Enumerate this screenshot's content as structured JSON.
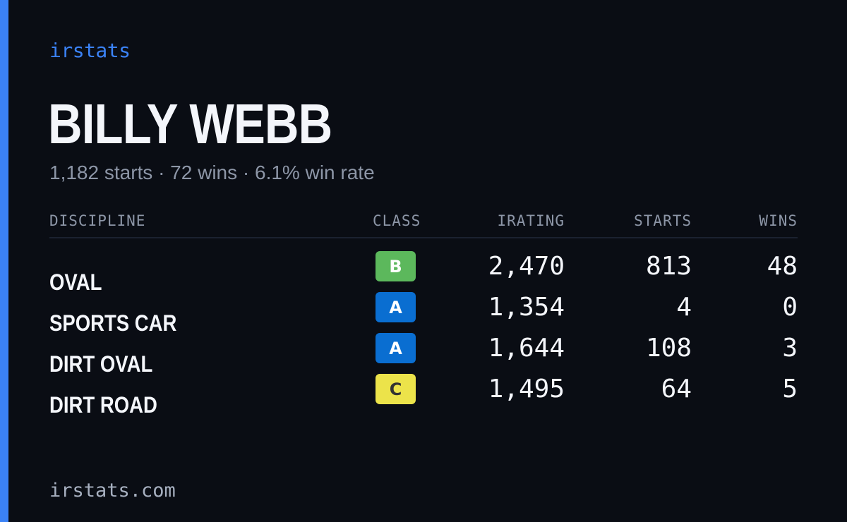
{
  "brand": {
    "name": "irstats",
    "accent_color": "#3b82f6"
  },
  "profile": {
    "name": "BILLY WEBB",
    "summary": "1,182 starts · 72 wins · 6.1% win rate"
  },
  "table": {
    "headers": {
      "discipline": "DISCIPLINE",
      "class": "CLASS",
      "irating": "IRATING",
      "starts": "STARTS",
      "wins": "WINS"
    },
    "rows": [
      {
        "discipline": "OVAL",
        "class": "B",
        "class_color": "#5cb85c",
        "class_text_color": "#ffffff",
        "irating": "2,470",
        "starts": "813",
        "wins": "48"
      },
      {
        "discipline": "SPORTS CAR",
        "class": "A",
        "class_color": "#0a6ed1",
        "class_text_color": "#ffffff",
        "irating": "1,354",
        "starts": "4",
        "wins": "0"
      },
      {
        "discipline": "DIRT OVAL",
        "class": "A",
        "class_color": "#0a6ed1",
        "class_text_color": "#ffffff",
        "irating": "1,644",
        "starts": "108",
        "wins": "3"
      },
      {
        "discipline": "DIRT ROAD",
        "class": "C",
        "class_color": "#ece34a",
        "class_text_color": "#333333",
        "irating": "1,495",
        "starts": "64",
        "wins": "5"
      }
    ]
  },
  "footer": {
    "url": "irstats.com"
  }
}
